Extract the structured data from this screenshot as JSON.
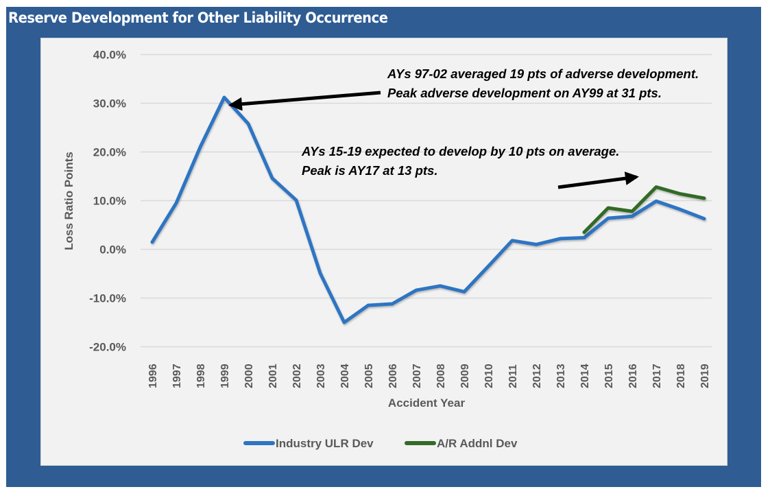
{
  "title": "Reserve Development for Other Liability Occurrence",
  "colors": {
    "frame": "#2e5c93",
    "panel": "#f2f2f2",
    "industry": "#2e75c2",
    "ar": "#336b28",
    "zero_line": "#000000",
    "grid": "#d9d9d9",
    "axis_text": "#595959"
  },
  "chart_data": {
    "type": "line",
    "title": "Reserve Development for Other Liability Occurrence",
    "xlabel": "Accident Year",
    "ylabel": "Loss Ratio Points",
    "ylim": [
      -20,
      40
    ],
    "yticks": [
      40,
      30,
      20,
      10,
      0,
      -10,
      -20
    ],
    "ytick_labels": [
      "40.0%",
      "30.0%",
      "20.0%",
      "10.0%",
      "0.0%",
      "-10.0%",
      "-20.0%"
    ],
    "grid": true,
    "legend_position": "bottom",
    "categories": [
      "1996",
      "1997",
      "1998",
      "1999",
      "2000",
      "2001",
      "2002",
      "2003",
      "2004",
      "2005",
      "2006",
      "2007",
      "2008",
      "2009",
      "2010",
      "2011",
      "2012",
      "2013",
      "2014",
      "2015",
      "2016",
      "2017",
      "2018",
      "2019"
    ],
    "series": [
      {
        "name": "Industry ULR Dev",
        "color": "#2e75c2",
        "values": [
          1.5,
          9.5,
          21.0,
          31.2,
          25.8,
          14.6,
          10.1,
          -4.9,
          -15.0,
          -11.5,
          -11.2,
          -8.4,
          -7.5,
          -8.7,
          -3.5,
          1.8,
          1.0,
          2.2,
          2.4,
          6.4,
          6.8,
          9.9,
          8.2,
          6.3
        ]
      },
      {
        "name": "A/R Addnl Dev",
        "color": "#336b28",
        "values": [
          null,
          null,
          null,
          null,
          null,
          null,
          null,
          null,
          null,
          null,
          null,
          null,
          null,
          null,
          null,
          null,
          null,
          null,
          3.5,
          8.5,
          7.8,
          12.8,
          11.4,
          10.5
        ]
      }
    ],
    "reference_line": {
      "name": "zero-line",
      "value": 0,
      "from": "1996",
      "to": "2019"
    },
    "annotations": [
      {
        "lines": [
          "AYs 97-02 averaged 19 pts of adverse development.",
          "Peak adverse development on AY99 at 31 pts."
        ],
        "arrow_target": {
          "x": "1999",
          "y": 31.2
        }
      },
      {
        "lines": [
          "AYs 15-19 expected to develop by 10 pts on average.",
          "Peak is AY17 at 13 pts."
        ],
        "arrow_direction": "up-right toward 2017"
      }
    ]
  }
}
